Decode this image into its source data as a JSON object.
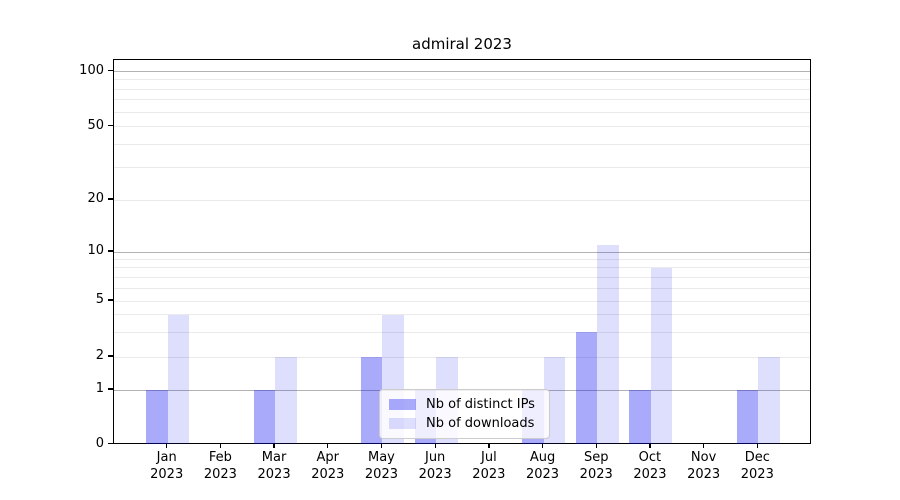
{
  "chart_data": {
    "type": "bar",
    "title": "admiral 2023",
    "categories": [
      "Jan",
      "Feb",
      "Mar",
      "Apr",
      "May",
      "Jun",
      "Jul",
      "Aug",
      "Sep",
      "Oct",
      "Nov",
      "Dec"
    ],
    "category_year": "2023",
    "series": [
      {
        "name": "Nb of distinct IPs",
        "color": "rgba(10,10,240,0.345)",
        "values": [
          1,
          0,
          1,
          0,
          2,
          1,
          0,
          1,
          3,
          1,
          0,
          1
        ]
      },
      {
        "name": "Nb of downloads",
        "color": "rgba(10,10,240,0.135)",
        "values": [
          4,
          0,
          2,
          0,
          4,
          2,
          0,
          2,
          11,
          8,
          0,
          2
        ]
      }
    ],
    "xlabel": "",
    "ylabel": "",
    "y_ticks": [
      0,
      1,
      2,
      5,
      10,
      20,
      50,
      100
    ],
    "ylim": [
      0,
      115
    ],
    "scale": "log-like with linear 0-1 segment",
    "grid": {
      "major_values": [
        1,
        10,
        100
      ],
      "minor_values": [
        2,
        3,
        4,
        5,
        6,
        7,
        8,
        9,
        20,
        30,
        40,
        50,
        60,
        70,
        80,
        90
      ],
      "major_color": "#b2b2b2",
      "minor_color": "#eaeaea"
    },
    "legend": {
      "position": "lower-center-left",
      "entries": [
        "Nb of distinct IPs",
        "Nb of downloads"
      ]
    }
  }
}
